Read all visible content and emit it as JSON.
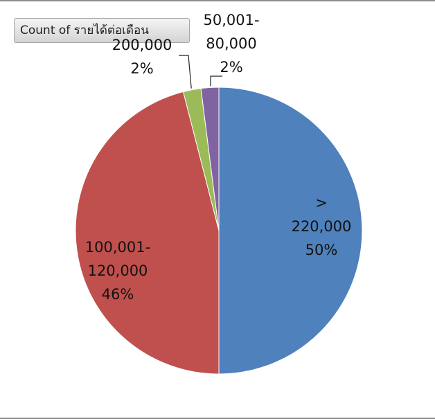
{
  "field_button": {
    "label": "Count of รายได้ต่อเดือน"
  },
  "chart_data": {
    "type": "pie",
    "series_field": "Count of รายได้ต่อเดือน",
    "slices": [
      {
        "category": "> 220,000",
        "label_lines": [
          ">",
          "220,000",
          "50%"
        ],
        "percent": 50,
        "value": 50,
        "color": "#4f81bd"
      },
      {
        "category": "100,001-120,000",
        "label_lines": [
          "100,001-",
          "120,000",
          "46%"
        ],
        "percent": 46,
        "value": 46,
        "color": "#c0504d"
      },
      {
        "category": "200,000",
        "label_lines": [
          "200,000",
          "2%"
        ],
        "percent": 2,
        "value": 2,
        "color": "#9bbb59"
      },
      {
        "category": "50,001-80,000",
        "label_lines": [
          "50,001-",
          "80,000",
          "2%"
        ],
        "percent": 2,
        "value": 2,
        "color": "#8064a2"
      }
    ],
    "start": "top",
    "direction": "clockwise",
    "legend": "none"
  }
}
